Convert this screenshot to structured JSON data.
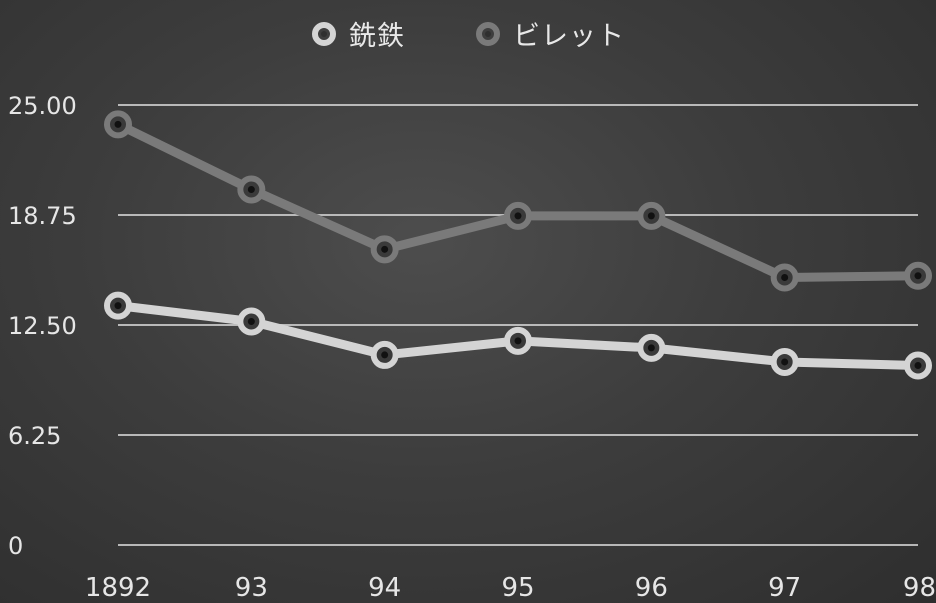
{
  "chart_data": {
    "type": "line",
    "categories": [
      "1892",
      "93",
      "94",
      "95",
      "96",
      "97",
      "98"
    ],
    "series": [
      {
        "name": "銑鉄",
        "values": [
          13.6,
          12.7,
          10.8,
          11.6,
          11.2,
          10.4,
          10.2
        ],
        "color": "#d4d4d4"
      },
      {
        "name": "ビレット",
        "values": [
          23.9,
          20.2,
          16.8,
          18.7,
          18.7,
          15.2,
          15.3
        ],
        "color": "#7a7a7a"
      }
    ],
    "ylim": [
      0,
      25
    ],
    "yticks": [
      "0",
      "6.25",
      "12.50",
      "18.75",
      "25.00"
    ],
    "ytick_values": [
      0,
      6.25,
      12.5,
      18.75,
      25
    ],
    "grid": true,
    "legend_position": "top-center",
    "title": "",
    "xlabel": "",
    "ylabel": ""
  }
}
